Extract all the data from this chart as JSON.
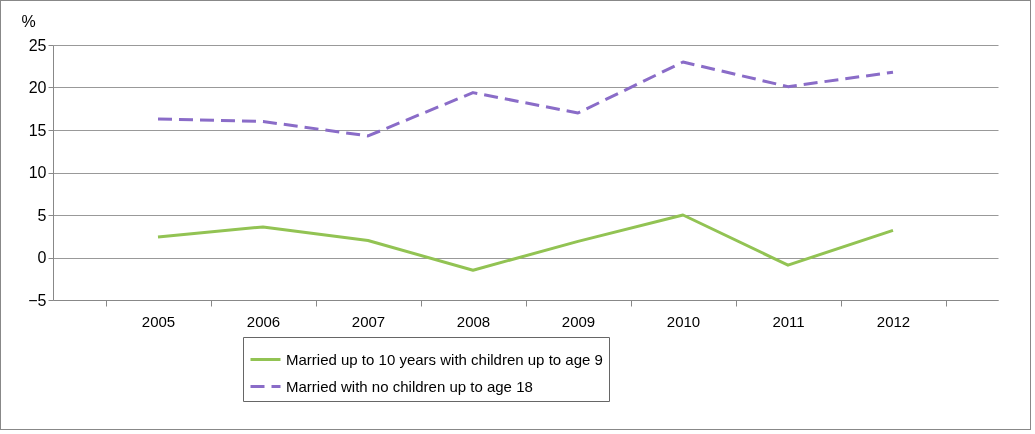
{
  "chart_data": {
    "type": "line",
    "ylabel": "%",
    "categories": [
      "2005",
      "2006",
      "2007",
      "2008",
      "2009",
      "2010",
      "2011",
      "2012"
    ],
    "series": [
      {
        "name": "Married up to 10 years with children up to age 9",
        "color": "#92c353",
        "line_style": "solid",
        "values": [
          2.4,
          3.6,
          2.0,
          -1.5,
          1.9,
          5.0,
          -0.9,
          3.2
        ]
      },
      {
        "name": "Married with no children up to age 18",
        "color": "#8a6cc8",
        "line_style": "dashed",
        "values": [
          16.3,
          16.0,
          14.3,
          19.4,
          17.0,
          23.0,
          20.1,
          21.8
        ]
      }
    ],
    "ylim": [
      -5,
      25
    ],
    "yticks": [
      -5,
      0,
      5,
      10,
      15,
      20,
      25
    ],
    "grid": "y",
    "legend": "bottom"
  }
}
